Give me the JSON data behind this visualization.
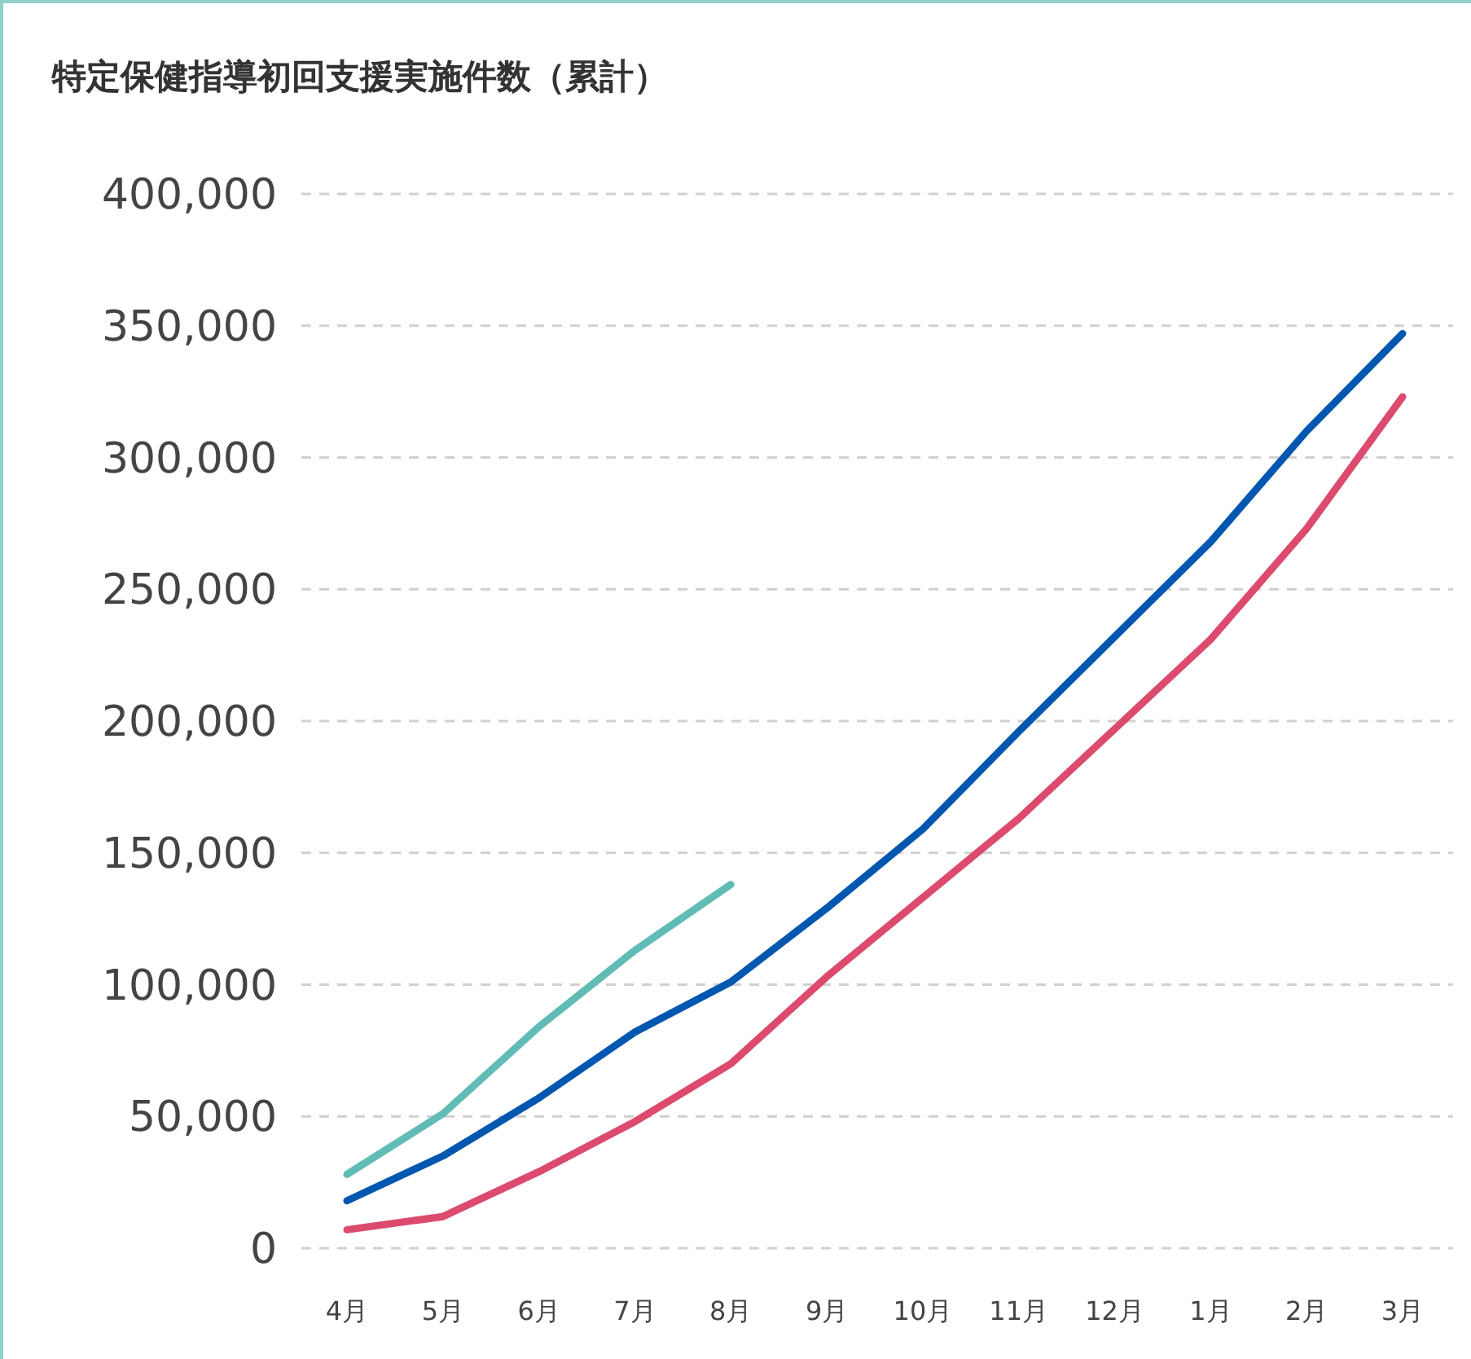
{
  "chart_data": {
    "type": "line",
    "title": "特定保健指導初回支援実施件数（累計）",
    "categories": [
      "4月",
      "5月",
      "6月",
      "7月",
      "8月",
      "9月",
      "10月",
      "11月",
      "12月",
      "1月",
      "2月",
      "3月"
    ],
    "series": [
      {
        "color": "#60bcb4",
        "values": [
          28000,
          51000,
          84000,
          113000,
          138000,
          null,
          null,
          null,
          null,
          null,
          null,
          null
        ]
      },
      {
        "color": "#0057b0",
        "values": [
          18000,
          35000,
          57000,
          82000,
          101000,
          129000,
          159000,
          196000,
          232000,
          268000,
          310000,
          347000
        ]
      },
      {
        "color": "#dc4a6e",
        "values": [
          7000,
          12000,
          29000,
          48000,
          70000,
          103000,
          133000,
          163000,
          197000,
          231000,
          273000,
          323000
        ]
      }
    ],
    "ylim": [
      0,
      400000
    ],
    "yticks": [
      {
        "value": 0,
        "label": "0"
      },
      {
        "value": 50000,
        "label": "50,000"
      },
      {
        "value": 100000,
        "label": "100,000"
      },
      {
        "value": 150000,
        "label": "150,000"
      },
      {
        "value": 200000,
        "label": "200,000"
      },
      {
        "value": 250000,
        "label": "250,000"
      },
      {
        "value": 300000,
        "label": "300,000"
      },
      {
        "value": 350000,
        "label": "350,000"
      },
      {
        "value": 400000,
        "label": "400,000"
      }
    ],
    "grid": "y",
    "marker": "none",
    "line_style": "solid"
  }
}
